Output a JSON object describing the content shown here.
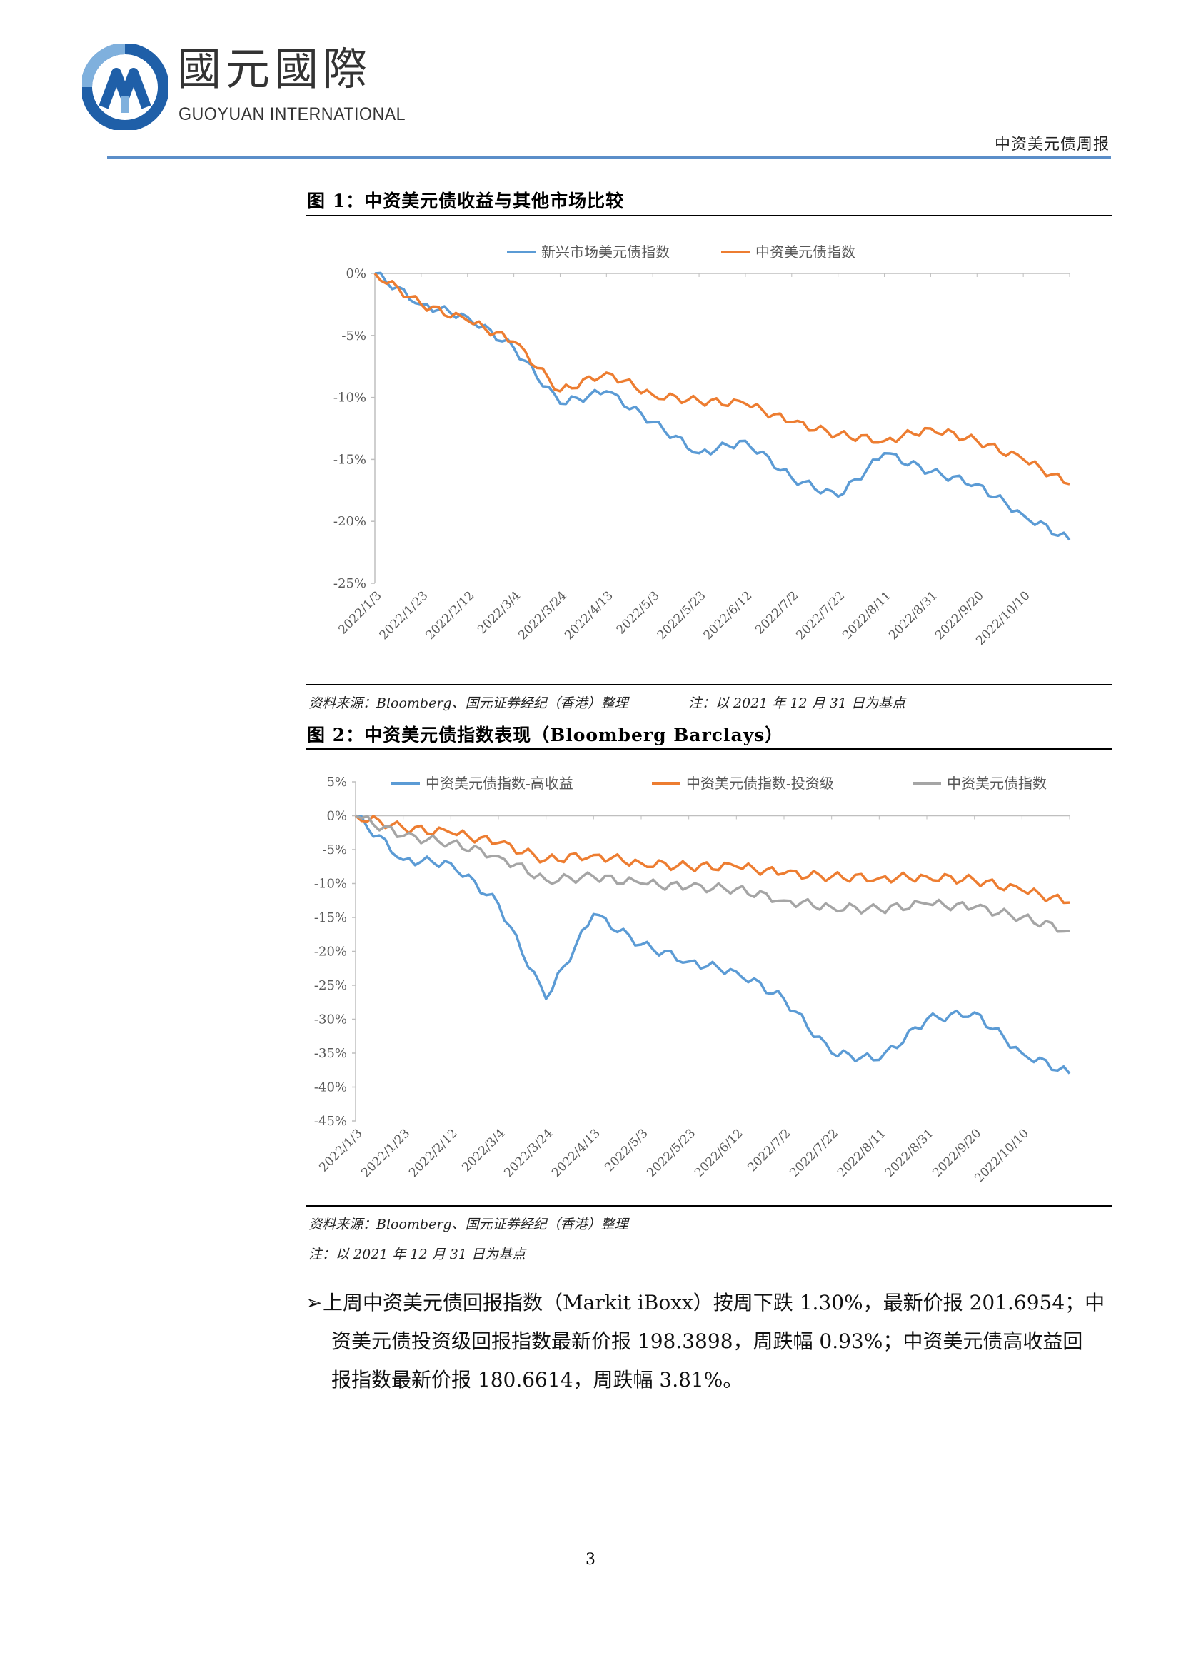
{
  "header": {
    "logo_cn": "國元國際",
    "logo_en": "GUOYUAN INTERNATIONAL",
    "doc_title": "中资美元债周报",
    "colors": {
      "logo_dark_blue": "#1f5fa8",
      "logo_light_blue": "#7fb0dd",
      "rule": "#5b8ec9"
    }
  },
  "figures": [
    {
      "title": "图 1：中资美元债收益与其他市场比较",
      "source": "资料来源：Bloomberg、国元证券经纪（香港）整理",
      "note": "注：以 2021 年 12 月 31 日为基点"
    },
    {
      "title": "图 2：中资美元债指数表现（Bloomberg Barclays）",
      "source": "资料来源：Bloomberg、国元证券经纪（香港）整理",
      "note": "注：以 2021 年 12 月 31 日为基点"
    }
  ],
  "chart_data": [
    {
      "type": "line",
      "title": "",
      "x": [
        "2022/1/3",
        "2022/1/23",
        "2022/2/12",
        "2022/3/4",
        "2022/3/24",
        "2022/4/13",
        "2022/5/3",
        "2022/5/23",
        "2022/6/12",
        "2022/7/2",
        "2022/7/22",
        "2022/8/11",
        "2022/8/31",
        "2022/9/20",
        "2022/10/10",
        "2022/10/21"
      ],
      "x_tick_labels": [
        "2022/1/3",
        "2022/1/23",
        "2022/2/12",
        "2022/3/4",
        "2022/3/24",
        "2022/4/13",
        "2022/5/3",
        "2022/5/23",
        "2022/6/12",
        "2022/7/2",
        "2022/7/22",
        "2022/8/11",
        "2022/8/31",
        "2022/9/20",
        "2022/10/10"
      ],
      "y_tick_labels": [
        "0%",
        "-5%",
        "-10%",
        "-15%",
        "-20%",
        "-25%"
      ],
      "ylim": [
        -25,
        0
      ],
      "grid": false,
      "legend": "top",
      "series": [
        {
          "name": "新兴市场美元债指数",
          "color": "#5b9bd5",
          "values": [
            0.0,
            -2.5,
            -3.5,
            -6.0,
            -10.5,
            -9.5,
            -12.0,
            -14.5,
            -13.5,
            -16.5,
            -18.0,
            -14.5,
            -16.0,
            -17.0,
            -19.5,
            -21.5
          ]
        },
        {
          "name": "中资美元债指数",
          "color": "#ed7d31",
          "values": [
            0.0,
            -2.5,
            -3.8,
            -5.5,
            -9.5,
            -8.0,
            -9.8,
            -10.3,
            -10.5,
            -12.0,
            -13.0,
            -13.5,
            -12.5,
            -13.5,
            -15.0,
            -17.0
          ]
        }
      ]
    },
    {
      "type": "line",
      "title": "",
      "x": [
        "2022/1/3",
        "2022/1/23",
        "2022/2/12",
        "2022/3/4",
        "2022/3/24",
        "2022/4/13",
        "2022/5/3",
        "2022/5/23",
        "2022/6/12",
        "2022/7/2",
        "2022/7/22",
        "2022/8/11",
        "2022/8/31",
        "2022/9/20",
        "2022/10/10",
        "2022/10/21"
      ],
      "x_tick_labels": [
        "2022/1/3",
        "2022/1/23",
        "2022/2/12",
        "2022/3/4",
        "2022/3/24",
        "2022/4/13",
        "2022/5/3",
        "2022/5/23",
        "2022/6/12",
        "2022/7/2",
        "2022/7/22",
        "2022/8/11",
        "2022/8/31",
        "2022/9/20",
        "2022/10/10"
      ],
      "y_tick_labels": [
        "5%",
        "0%",
        "-5%",
        "-10%",
        "-15%",
        "-20%",
        "-25%",
        "-30%",
        "-35%",
        "-40%",
        "-45%"
      ],
      "ylim": [
        -45,
        5
      ],
      "grid": false,
      "legend": "top",
      "series": [
        {
          "name": "中资美元债指数-高收益",
          "color": "#5b9bd5",
          "values": [
            0.0,
            -6.5,
            -7.0,
            -13.0,
            -27.0,
            -14.5,
            -19.0,
            -21.5,
            -23.0,
            -27.0,
            -35.0,
            -36.0,
            -30.0,
            -29.0,
            -35.0,
            -38.0
          ]
        },
        {
          "name": "中资美元债指数-投资级",
          "color": "#ed7d31",
          "values": [
            0.0,
            -1.8,
            -2.5,
            -4.0,
            -6.5,
            -5.8,
            -7.0,
            -7.5,
            -7.5,
            -8.5,
            -9.0,
            -9.2,
            -9.0,
            -9.5,
            -11.0,
            -12.8
          ]
        },
        {
          "name": "中资美元债指数",
          "color": "#a5a5a5",
          "values": [
            0.0,
            -3.0,
            -4.0,
            -6.0,
            -9.5,
            -9.0,
            -10.0,
            -10.5,
            -10.8,
            -12.5,
            -13.5,
            -13.8,
            -13.0,
            -13.5,
            -15.0,
            -17.0
          ]
        }
      ]
    }
  ],
  "body": {
    "bullet_line1": "上周中资美元债回报指数（Markit iBoxx）按周下跌 1.30%，最新价报 201.6954；中",
    "bullet_line2": "资美元债投资级回报指数最新价报 198.3898，周跌幅 0.93%；中资美元债高收益回",
    "bullet_line3": "报指数最新价报 180.6614，周跌幅 3.81%。"
  },
  "page_number": "3"
}
